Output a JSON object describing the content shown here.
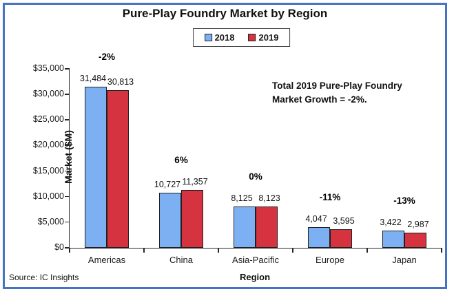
{
  "title": "Pure-Play Foundry Market by Region",
  "source": "Source: IC Insights",
  "annotation": {
    "line1": "Total 2019 Pure-Play Foundry",
    "line2": "Market Growth = -2%."
  },
  "colors": {
    "frame_border": "#4472C4",
    "bar_2018": "#7DB0F3",
    "bar_2019": "#D4333F",
    "bar_outline": "#1f1f1f"
  },
  "chart_data": {
    "type": "bar",
    "title": "Pure-Play Foundry Market by Region",
    "xlabel": "Region",
    "ylabel": "Market ($M)",
    "ylim": [
      0,
      35000
    ],
    "ytick_step": 5000,
    "ytick_labels": [
      "$0",
      "$5,000",
      "$10,000",
      "$15,000",
      "$20,000",
      "$25,000",
      "$30,000",
      "$35,000"
    ],
    "grid": false,
    "legend_position": "top",
    "categories": [
      "Americas",
      "China",
      "Asia-Pacific",
      "Europe",
      "Japan"
    ],
    "series": [
      {
        "name": "2018",
        "color": "#7DB0F3",
        "values": [
          31484,
          10727,
          8125,
          4047,
          3422
        ],
        "labels": [
          "31,484",
          "10,727",
          "8,125",
          "4,047",
          "3,422"
        ]
      },
      {
        "name": "2019",
        "color": "#D4333F",
        "values": [
          30813,
          11357,
          8123,
          3595,
          2987
        ],
        "labels": [
          "30,813",
          "11,357",
          "8,123",
          "3,595",
          "2,987"
        ]
      }
    ],
    "growth_labels": [
      "-2%",
      "6%",
      "0%",
      "-11%",
      "-13%"
    ]
  }
}
